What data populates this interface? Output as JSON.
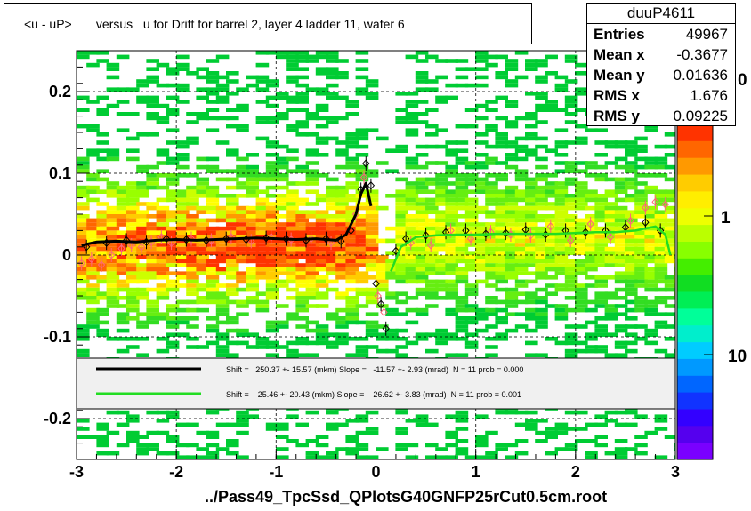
{
  "title": "<u - uP>       versus   u for Drift for barrel 2, layer 4 ladder 11, wafer 6",
  "footer": "../Pass49_TpcSsd_QPlotsG40GNFP25rCut0.5cm.root",
  "stats": {
    "name": "duuP4611",
    "rows": [
      {
        "label": "Entries",
        "value": "49967"
      },
      {
        "label": "Mean x",
        "value": "-0.3677"
      },
      {
        "label": "Mean y",
        "value": "0.01636"
      },
      {
        "label": "RMS x",
        "value": "1.676"
      },
      {
        "label": "RMS y",
        "value": "0.09225"
      }
    ]
  },
  "legend": [
    {
      "text": "Shift =   250.37 +- 15.57 (mkm) Slope =   -11.57 +- 2.93 (mrad)  N = 11 prob = 0.000",
      "color": "#000000"
    },
    {
      "text": "Shift =    25.46 +- 20.43 (mkm) Slope =    26.62 +- 3.83 (mrad)  N = 11 prob = 0.001",
      "color": "#22dd22"
    }
  ],
  "chart_data": {
    "type": "heatmap",
    "xlim": [
      -3,
      3
    ],
    "ylim": [
      -0.25,
      0.25
    ],
    "x_ticks": [
      -3,
      -2,
      -1,
      0,
      1,
      2,
      3
    ],
    "y_ticks": [
      -0.2,
      -0.1,
      0,
      0.1,
      0.2
    ],
    "y_tick_labels": [
      "-0.2",
      "-0.1",
      "0",
      "0.1",
      "0.2"
    ],
    "colorbar_labels": [
      "1",
      "10"
    ],
    "colorbar_partial_label": "0",
    "grid": true,
    "profile_black": {
      "x": [
        -2.95,
        -2.8,
        -2.6,
        -2.4,
        -2.2,
        -2.0,
        -1.8,
        -1.6,
        -1.4,
        -1.2,
        -1.0,
        -0.8,
        -0.6,
        -0.4,
        -0.3,
        -0.2,
        -0.15,
        -0.1,
        -0.05
      ],
      "y": [
        0.012,
        0.016,
        0.017,
        0.016,
        0.018,
        0.019,
        0.018,
        0.019,
        0.02,
        0.021,
        0.02,
        0.019,
        0.02,
        0.018,
        0.025,
        0.05,
        0.075,
        0.088,
        0.06
      ]
    },
    "profile_green": {
      "x": [
        0.15,
        0.25,
        0.4,
        0.6,
        0.8,
        1.0,
        1.2,
        1.4,
        1.6,
        1.8,
        2.0,
        2.2,
        2.4,
        2.6,
        2.8,
        2.9,
        2.95
      ],
      "y": [
        -0.02,
        0.01,
        0.022,
        0.024,
        0.025,
        0.025,
        0.026,
        0.026,
        0.026,
        0.026,
        0.027,
        0.028,
        0.028,
        0.03,
        0.035,
        0.025,
        0.0
      ]
    },
    "points_black": {
      "x": [
        -2.9,
        -2.7,
        -2.5,
        -2.3,
        -2.1,
        -1.9,
        -1.7,
        -1.5,
        -1.3,
        -1.1,
        -0.9,
        -0.7,
        -0.5,
        -0.35,
        -0.25,
        -0.15,
        -0.1,
        -0.05,
        0.0,
        0.05,
        0.1,
        0.2,
        0.3,
        0.5,
        0.7,
        0.9,
        1.1,
        1.3,
        1.5,
        1.7,
        1.9,
        2.1,
        2.3,
        2.5,
        2.7,
        2.85
      ],
      "y": [
        0.01,
        0.015,
        0.018,
        0.016,
        0.02,
        0.019,
        0.018,
        0.02,
        0.019,
        0.021,
        0.02,
        0.018,
        0.02,
        0.017,
        0.03,
        0.08,
        0.112,
        0.085,
        -0.035,
        -0.06,
        -0.09,
        0.005,
        0.02,
        0.024,
        0.028,
        0.03,
        0.026,
        0.027,
        0.031,
        0.025,
        0.03,
        0.028,
        0.03,
        0.034,
        0.04,
        0.03
      ]
    },
    "points_red": {
      "x": [
        -2.95,
        -2.85,
        -2.75,
        -2.65,
        -2.55,
        -2.45,
        -2.35,
        -2.25,
        -2.15,
        -2.05,
        -1.85,
        -1.65,
        -1.45,
        -1.25,
        -1.05,
        -0.85,
        -0.65,
        -0.45,
        -0.2,
        -0.12,
        0.02,
        0.08,
        0.35,
        0.55,
        0.75,
        0.95,
        1.15,
        1.35,
        1.55,
        1.75,
        1.95,
        2.15,
        2.35,
        2.55,
        2.7,
        2.8,
        2.9
      ],
      "y": [
        -0.01,
        -0.005,
        -0.012,
        0.0,
        0.008,
        0.012,
        0.01,
        0.016,
        0.022,
        0.015,
        0.02,
        0.018,
        0.022,
        0.017,
        0.022,
        0.019,
        0.02,
        0.015,
        0.05,
        0.095,
        -0.05,
        -0.07,
        0.015,
        0.012,
        0.03,
        0.02,
        0.028,
        0.025,
        0.024,
        0.035,
        0.018,
        0.038,
        0.022,
        0.042,
        0.058,
        0.065,
        0.062
      ]
    }
  }
}
